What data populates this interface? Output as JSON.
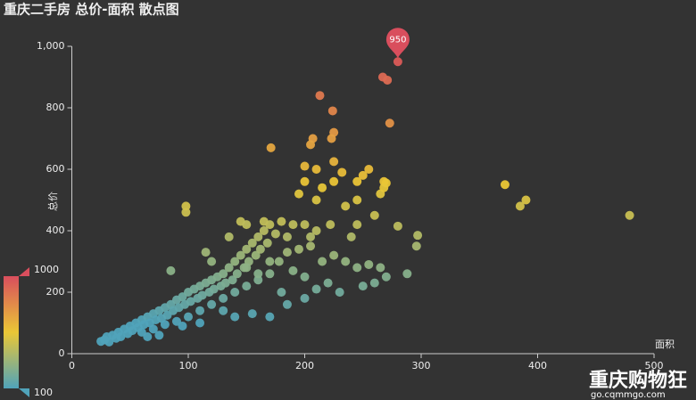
{
  "chart_data": {
    "type": "scatter",
    "title": "重庆二手房 总价-面积 散点图",
    "x_label": "面积",
    "y_label": "总价",
    "xlim": [
      0,
      500
    ],
    "xticks": [
      0,
      100,
      200,
      300,
      400,
      500
    ],
    "ylim": [
      0,
      1000
    ],
    "yticks": [
      0,
      200,
      400,
      600,
      800,
      {
        "value": 1000,
        "label": "1,000"
      }
    ],
    "visual_map": {
      "min": 100,
      "max": 1000,
      "colors": [
        "#50a3ba",
        "#eac736",
        "#d94e5d"
      ]
    },
    "mark_point": {
      "x": 280,
      "value": 950,
      "color": "#d94e5d"
    },
    "x": [
      280,
      267,
      271,
      213,
      224,
      273,
      225,
      223,
      207,
      205,
      171,
      372,
      390,
      385,
      479,
      288,
      297,
      296,
      280,
      268,
      270,
      255,
      25,
      28,
      30,
      32,
      35,
      38,
      40,
      42,
      45,
      48,
      50,
      52,
      55,
      57,
      60,
      62,
      65,
      67,
      70,
      72,
      75,
      77,
      80,
      82,
      85,
      87,
      90,
      92,
      95,
      97,
      100,
      102,
      105,
      108,
      110,
      112,
      115,
      118,
      120,
      122,
      125,
      128,
      130,
      132,
      135,
      138,
      140,
      142,
      145,
      148,
      150,
      152,
      155,
      158,
      160,
      162,
      165,
      168,
      170,
      60,
      70,
      80,
      90,
      100,
      110,
      120,
      130,
      140,
      150,
      160,
      170,
      85,
      98,
      98,
      120,
      115,
      135,
      145,
      150,
      165,
      175,
      185,
      180,
      190,
      200,
      205,
      210,
      222,
      235,
      245,
      195,
      200,
      210,
      215,
      225,
      232,
      245,
      250,
      265,
      268,
      200,
      210,
      225,
      178,
      185,
      195,
      205,
      215,
      225,
      235,
      245,
      255,
      265,
      190,
      200,
      210,
      220,
      230,
      250,
      260,
      270,
      150,
      160,
      170,
      180,
      130,
      110,
      95,
      75,
      65,
      200,
      185,
      170,
      155,
      140,
      260,
      245,
      240
    ],
    "values": [
      950,
      900,
      890,
      840,
      790,
      750,
      720,
      700,
      700,
      680,
      670,
      550,
      500,
      480,
      450,
      260,
      385,
      350,
      415,
      560,
      555,
      600,
      40,
      45,
      55,
      38,
      60,
      50,
      70,
      55,
      80,
      65,
      90,
      75,
      100,
      85,
      110,
      95,
      120,
      100,
      130,
      110,
      140,
      115,
      150,
      125,
      160,
      140,
      175,
      150,
      185,
      160,
      200,
      170,
      210,
      180,
      220,
      190,
      230,
      200,
      240,
      210,
      250,
      220,
      260,
      230,
      280,
      240,
      300,
      260,
      320,
      280,
      340,
      300,
      360,
      320,
      380,
      340,
      400,
      360,
      420,
      70,
      80,
      95,
      105,
      120,
      140,
      160,
      180,
      200,
      220,
      240,
      260,
      270,
      460,
      480,
      300,
      330,
      380,
      430,
      420,
      430,
      390,
      380,
      430,
      420,
      420,
      380,
      400,
      420,
      480,
      500,
      520,
      560,
      500,
      540,
      560,
      590,
      560,
      580,
      520,
      540,
      610,
      600,
      625,
      300,
      330,
      340,
      350,
      300,
      320,
      300,
      280,
      290,
      280,
      270,
      250,
      210,
      230,
      200,
      220,
      230,
      250,
      280,
      260,
      300,
      200,
      140,
      100,
      90,
      60,
      55,
      180,
      160,
      120,
      130,
      120,
      450,
      420,
      380
    ]
  },
  "watermark": {
    "name": "重庆购物狂",
    "url": "go.cqmmgo.com"
  }
}
